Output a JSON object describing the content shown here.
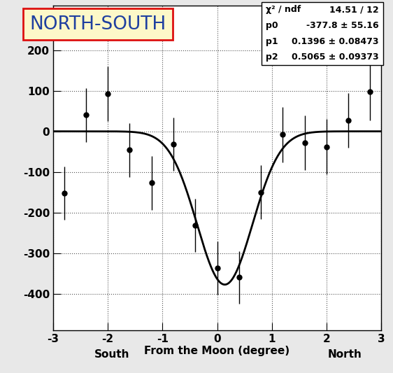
{
  "chart_data": {
    "type": "scatter",
    "title": "NORTH-SOUTH",
    "xlabel": "From the Moon (degree)",
    "annotations": [
      "South",
      "North"
    ],
    "x": [
      -2.8,
      -2.4,
      -2.0,
      -1.6,
      -1.2,
      -0.8,
      -0.4,
      0.0,
      0.4,
      0.8,
      1.2,
      1.6,
      2.0,
      2.4,
      2.8
    ],
    "values": [
      -152,
      40,
      93,
      -46,
      -127,
      -32,
      -232,
      -337,
      -360,
      -150,
      -8,
      -28,
      -38,
      27,
      97
    ],
    "errors": [
      66,
      66,
      67,
      66,
      66,
      66,
      66,
      65,
      65,
      66,
      68,
      67,
      68,
      68,
      70
    ],
    "color": "#000000",
    "marker": "circle",
    "fit": {
      "type": "gaussian",
      "p0": -377.8,
      "p1": 0.1396,
      "p2": 0.5065,
      "color": "#000000"
    },
    "stats": [
      {
        "label": "χ² / ndf",
        "value": "14.51 / 12"
      },
      {
        "label": "p0",
        "value": "-377.8 ± 55.16"
      },
      {
        "label": "p1",
        "value": "0.1396 ± 0.08473"
      },
      {
        "label": "p2",
        "value": "0.5065 ± 0.09373"
      }
    ],
    "xlim": [
      -3,
      3
    ],
    "xticks": [
      -3,
      -2,
      -1,
      0,
      1,
      2,
      3
    ],
    "ylim": [
      -490,
      310
    ],
    "yticks": [
      -400,
      -300,
      -200,
      -100,
      0,
      100,
      200
    ],
    "grid": true
  }
}
